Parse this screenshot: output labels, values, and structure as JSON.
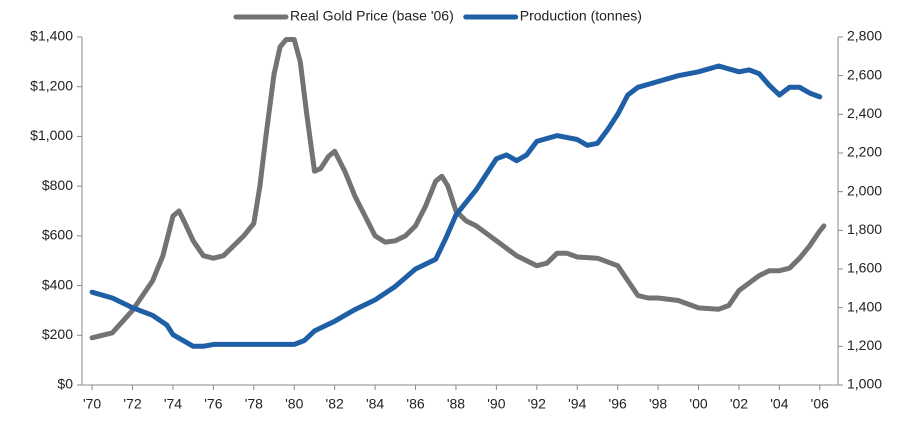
{
  "chart_data": {
    "type": "line",
    "xlim": [
      1969.5,
      2006.9
    ],
    "xticks": [
      {
        "value": 1970,
        "label": "'70"
      },
      {
        "value": 1972,
        "label": "'72"
      },
      {
        "value": 1974,
        "label": "'74"
      },
      {
        "value": 1976,
        "label": "'76"
      },
      {
        "value": 1978,
        "label": "'78"
      },
      {
        "value": 1980,
        "label": "'80"
      },
      {
        "value": 1982,
        "label": "'82"
      },
      {
        "value": 1984,
        "label": "'84"
      },
      {
        "value": 1986,
        "label": "'86"
      },
      {
        "value": 1988,
        "label": "'88"
      },
      {
        "value": 1990,
        "label": "'90"
      },
      {
        "value": 1992,
        "label": "'92"
      },
      {
        "value": 1994,
        "label": "'94"
      },
      {
        "value": 1996,
        "label": "'96"
      },
      {
        "value": 1998,
        "label": "'98"
      },
      {
        "value": 2000,
        "label": "'00"
      },
      {
        "value": 2002,
        "label": "'02"
      },
      {
        "value": 2004,
        "label": "'04"
      },
      {
        "value": 2006,
        "label": "'06"
      }
    ],
    "ylim": [
      0,
      1400
    ],
    "yticks": [
      {
        "value": 0,
        "label": "$0"
      },
      {
        "value": 200,
        "label": "$200"
      },
      {
        "value": 400,
        "label": "$400"
      },
      {
        "value": 600,
        "label": "$600"
      },
      {
        "value": 800,
        "label": "$800"
      },
      {
        "value": 1000,
        "label": "$1,000"
      },
      {
        "value": 1200,
        "label": "$1,200"
      },
      {
        "value": 1400,
        "label": "$1,400"
      }
    ],
    "y2lim": [
      1000,
      2800
    ],
    "y2ticks": [
      {
        "value": 1000,
        "label": "1,000"
      },
      {
        "value": 1200,
        "label": "1,200"
      },
      {
        "value": 1400,
        "label": "1,400"
      },
      {
        "value": 1600,
        "label": "1,600"
      },
      {
        "value": 1800,
        "label": "1,800"
      },
      {
        "value": 2000,
        "label": "2,000"
      },
      {
        "value": 2200,
        "label": "2,200"
      },
      {
        "value": 2400,
        "label": "2,400"
      },
      {
        "value": 2600,
        "label": "2,600"
      },
      {
        "value": 2800,
        "label": "2,800"
      }
    ],
    "legend": "top",
    "series": [
      {
        "name": "Real Gold Price (base '06)",
        "color": "#737373",
        "axis": "y",
        "x": [
          1970,
          1971,
          1972,
          1973,
          1973.5,
          1974,
          1974.3,
          1974.6,
          1975,
          1975.5,
          1976,
          1976.5,
          1977,
          1977.5,
          1978,
          1978.3,
          1978.6,
          1979,
          1979.3,
          1979.6,
          1980,
          1980.3,
          1980.6,
          1981,
          1981.3,
          1981.7,
          1982,
          1982.5,
          1983,
          1983.5,
          1984,
          1984.5,
          1985,
          1985.5,
          1986,
          1986.5,
          1987,
          1987.3,
          1987.6,
          1988,
          1988.5,
          1989,
          1990,
          1991,
          1992,
          1992.5,
          1993,
          1993.5,
          1994,
          1995,
          1996,
          1996.5,
          1997,
          1997.5,
          1998,
          1999,
          2000,
          2001,
          2001.5,
          2002,
          2003,
          2003.5,
          2004,
          2004.5,
          2005,
          2005.5,
          2006,
          2006.2
        ],
        "values": [
          190,
          210,
          300,
          420,
          520,
          680,
          700,
          650,
          580,
          520,
          510,
          520,
          560,
          600,
          650,
          800,
          1000,
          1250,
          1360,
          1390,
          1390,
          1300,
          1100,
          860,
          870,
          920,
          940,
          860,
          760,
          680,
          600,
          575,
          580,
          600,
          640,
          720,
          820,
          840,
          800,
          700,
          660,
          640,
          580,
          520,
          480,
          490,
          530,
          530,
          515,
          510,
          480,
          420,
          360,
          350,
          350,
          340,
          310,
          305,
          320,
          380,
          440,
          460,
          460,
          470,
          510,
          560,
          620,
          640
        ]
      },
      {
        "name": "Production (tonnes)",
        "color": "#1f5fa6",
        "axis": "y2",
        "x": [
          1970,
          1971,
          1972,
          1973,
          1973.7,
          1974,
          1975,
          1975.5,
          1976,
          1978,
          1980,
          1980.5,
          1981,
          1982,
          1983,
          1984,
          1985,
          1986,
          1987,
          1987.5,
          1988,
          1989,
          1990,
          1990.5,
          1991,
          1991.5,
          1992,
          1993,
          1994,
          1994.5,
          1995,
          1995.5,
          1996,
          1996.5,
          1997,
          1998,
          1999,
          2000,
          2001,
          2002,
          2002.5,
          2003,
          2003.5,
          2004,
          2004.5,
          2005,
          2005.5,
          2006
        ],
        "values": [
          1480,
          1450,
          1400,
          1360,
          1310,
          1260,
          1200,
          1200,
          1210,
          1210,
          1210,
          1230,
          1280,
          1330,
          1390,
          1440,
          1510,
          1600,
          1650,
          1760,
          1880,
          2010,
          2170,
          2190,
          2160,
          2190,
          2260,
          2290,
          2270,
          2240,
          2250,
          2320,
          2400,
          2500,
          2540,
          2570,
          2600,
          2620,
          2650,
          2620,
          2630,
          2610,
          2550,
          2500,
          2540,
          2540,
          2510,
          2490
        ]
      }
    ]
  }
}
